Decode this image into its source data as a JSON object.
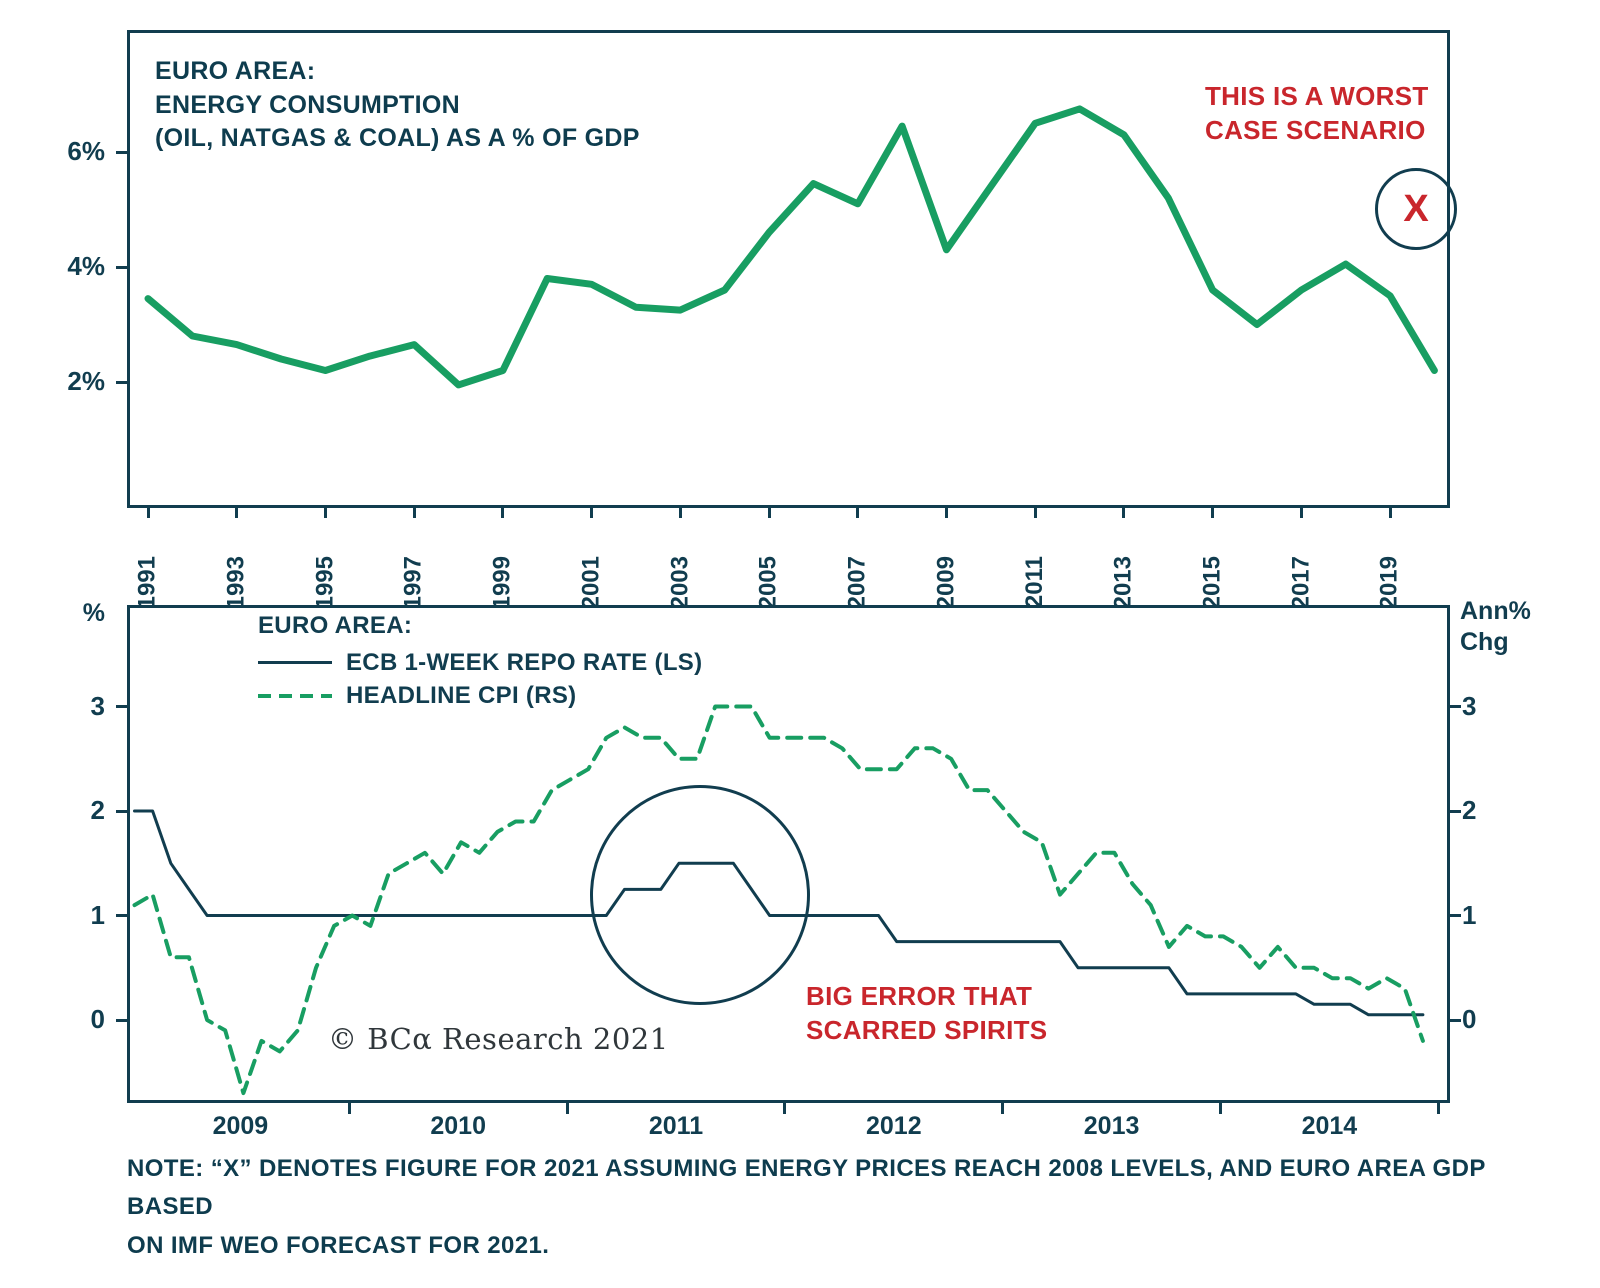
{
  "colors": {
    "green": "#189e62",
    "navy": "#113d4f",
    "red": "#c9262c",
    "text": "#0e3c4e"
  },
  "top_chart": {
    "title": "EURO AREA:\nENERGY CONSUMPTION\n(OIL, NATGAS & COAL) AS A % OF GDP",
    "annotation": "THIS IS A WORST\nCASE SCENARIO",
    "x_marker_label": "X"
  },
  "bottom_chart": {
    "legend": {
      "header": "EURO AREA:",
      "items": [
        {
          "label": "ECB 1-WEEK REPO RATE (LS)",
          "style": "solid"
        },
        {
          "label": "HEADLINE CPI (RS)",
          "style": "dashed"
        }
      ]
    },
    "annotation": "BIG ERROR THAT\nSCARRED SPIRITS",
    "ylabel_left": "%",
    "ylabel_right": "Ann%\nChg",
    "copyright": "© BCα Research 2021"
  },
  "note": "NOTE: “X” DENOTES FIGURE FOR 2021 ASSUMING ENERGY PRICES REACH 2008 LEVELS, AND EURO AREA GDP BASED\nON IMF WEO FORECAST FOR 2021.",
  "chart_data": [
    {
      "type": "line",
      "title": "EURO AREA: ENERGY CONSUMPTION (OIL, NATGAS & COAL) AS A % OF GDP",
      "x": [
        1991,
        1992,
        1993,
        1994,
        1995,
        1996,
        1997,
        1998,
        1999,
        2000,
        2001,
        2002,
        2003,
        2004,
        2005,
        2006,
        2007,
        2008,
        2009,
        2010,
        2011,
        2012,
        2013,
        2014,
        2015,
        2016,
        2017,
        2018,
        2019,
        2020
      ],
      "values": [
        3.45,
        2.8,
        2.65,
        2.4,
        2.2,
        2.45,
        2.65,
        1.95,
        2.2,
        3.8,
        3.7,
        3.3,
        3.25,
        3.6,
        4.6,
        5.45,
        5.1,
        6.45,
        4.3,
        5.4,
        6.5,
        6.75,
        6.3,
        5.2,
        3.6,
        3.0,
        3.6,
        4.05,
        3.5,
        2.2
      ],
      "ylim": [
        0,
        8
      ],
      "yticks": [
        2,
        4,
        6
      ],
      "ytick_labels": [
        "2%",
        "4%",
        "6%"
      ],
      "x_tick_labels": [
        "1991",
        "1993",
        "1995",
        "1997",
        "1999",
        "2001",
        "2003",
        "2005",
        "2007",
        "2009",
        "2011",
        "2013",
        "2015",
        "2017",
        "2019"
      ],
      "grid": false,
      "annotations": [
        {
          "text": "THIS IS A WORST CASE SCENARIO",
          "color": "#c9262c",
          "position": "top-right"
        },
        {
          "text": "X",
          "meaning": "worst-case 2021 figure",
          "x": 2021,
          "y": 5.0,
          "style": "circled"
        }
      ]
    },
    {
      "type": "line",
      "x_start": "2009-01",
      "x_frequency": "monthly",
      "x_tick_labels": [
        "2009",
        "2010",
        "2011",
        "2012",
        "2013",
        "2014"
      ],
      "ylim_left": [
        -0.8,
        3.9
      ],
      "ylim_right": [
        -0.8,
        3.9
      ],
      "yticks": [
        0,
        1,
        2,
        3
      ],
      "ylabel_left": "%",
      "ylabel_right": "Ann% Chg",
      "legend_position": "top-left",
      "grid": false,
      "series": [
        {
          "name": "ECB 1-WEEK REPO RATE (LS)",
          "axis": "left",
          "style": "solid",
          "values": [
            2.0,
            2.0,
            1.5,
            1.25,
            1.0,
            1.0,
            1.0,
            1.0,
            1.0,
            1.0,
            1.0,
            1.0,
            1.0,
            1.0,
            1.0,
            1.0,
            1.0,
            1.0,
            1.0,
            1.0,
            1.0,
            1.0,
            1.0,
            1.0,
            1.0,
            1.0,
            1.0,
            1.25,
            1.25,
            1.25,
            1.5,
            1.5,
            1.5,
            1.5,
            1.25,
            1.0,
            1.0,
            1.0,
            1.0,
            1.0,
            1.0,
            1.0,
            0.75,
            0.75,
            0.75,
            0.75,
            0.75,
            0.75,
            0.75,
            0.75,
            0.75,
            0.75,
            0.5,
            0.5,
            0.5,
            0.5,
            0.5,
            0.5,
            0.25,
            0.25,
            0.25,
            0.25,
            0.25,
            0.25,
            0.25,
            0.15,
            0.15,
            0.15,
            0.05,
            0.05,
            0.05,
            0.05
          ]
        },
        {
          "name": "HEADLINE CPI (RS)",
          "axis": "right",
          "style": "dashed",
          "values": [
            1.1,
            1.2,
            0.6,
            0.6,
            0.0,
            -0.1,
            -0.7,
            -0.2,
            -0.3,
            -0.1,
            0.5,
            0.9,
            1.0,
            0.9,
            1.4,
            1.5,
            1.6,
            1.4,
            1.7,
            1.6,
            1.8,
            1.9,
            1.9,
            2.2,
            2.3,
            2.4,
            2.7,
            2.8,
            2.7,
            2.7,
            2.5,
            2.5,
            3.0,
            3.0,
            3.0,
            2.7,
            2.7,
            2.7,
            2.7,
            2.6,
            2.4,
            2.4,
            2.4,
            2.6,
            2.6,
            2.5,
            2.2,
            2.2,
            2.0,
            1.8,
            1.7,
            1.2,
            1.4,
            1.6,
            1.6,
            1.3,
            1.1,
            0.7,
            0.9,
            0.8,
            0.8,
            0.7,
            0.5,
            0.7,
            0.5,
            0.5,
            0.4,
            0.4,
            0.3,
            0.4,
            0.3,
            -0.2
          ]
        }
      ],
      "annotations": [
        {
          "text": "BIG ERROR THAT SCARRED SPIRITS",
          "color": "#c9262c",
          "style": "circled-region",
          "region_center_x": "2011-07"
        }
      ]
    }
  ]
}
